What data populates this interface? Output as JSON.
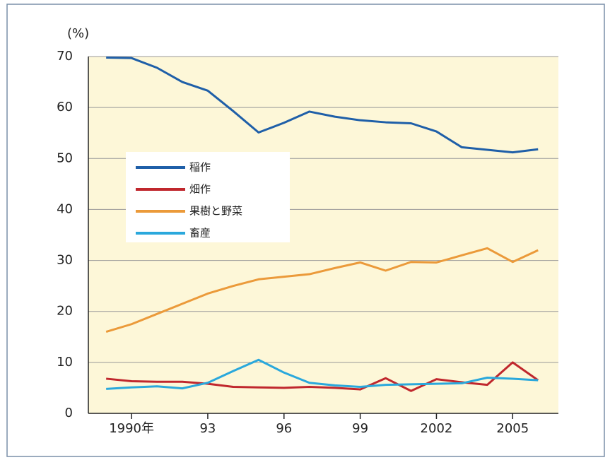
{
  "chart_data": {
    "type": "line",
    "y_unit": "(%)",
    "x": [
      1989,
      1990,
      1991,
      1992,
      1993,
      1994,
      1995,
      1996,
      1997,
      1998,
      1999,
      2000,
      2001,
      2002,
      2003,
      2004,
      2005,
      2006
    ],
    "series": [
      {
        "name": "稲作",
        "color": "#1f5fa8",
        "values": [
          69.8,
          69.7,
          67.8,
          65,
          63.3,
          59.3,
          55.1,
          57,
          59.2,
          58.2,
          57.5,
          57.1,
          56.9,
          55.3,
          52.2,
          51.7,
          51.2,
          51.8
        ]
      },
      {
        "name": "畑作",
        "color": "#c0272d",
        "values": [
          6.8,
          6.3,
          6.2,
          6.2,
          5.8,
          5.2,
          5.1,
          5,
          5.2,
          5,
          4.7,
          6.9,
          4.4,
          6.7,
          6.1,
          5.6,
          10,
          6.5
        ]
      },
      {
        "name": "果樹と野菜",
        "color": "#eb9a3a",
        "values": [
          16,
          17.5,
          19.5,
          21.5,
          23.5,
          25,
          26.3,
          26.8,
          27.3,
          28.5,
          29.6,
          28,
          29.7,
          29.6,
          31,
          32.4,
          29.7,
          32
        ]
      },
      {
        "name": "畜産",
        "color": "#2aa8dc",
        "values": [
          4.8,
          5.1,
          5.3,
          4.9,
          6,
          8.3,
          10.5,
          8,
          6,
          5.5,
          5.2,
          5.6,
          5.7,
          5.8,
          5.9,
          7,
          6.8,
          6.5
        ]
      }
    ],
    "xlim": [
      1988.3,
      2006.8
    ],
    "xticks": [
      {
        "value": 1990,
        "label": "1990年"
      },
      {
        "value": 1993,
        "label": "93"
      },
      {
        "value": 1996,
        "label": "96"
      },
      {
        "value": 1999,
        "label": "99"
      },
      2002,
      2005
    ],
    "ylim": [
      0,
      70
    ],
    "yticks": [
      0,
      10,
      20,
      30,
      40,
      50,
      60,
      70
    ],
    "grid": true
  }
}
